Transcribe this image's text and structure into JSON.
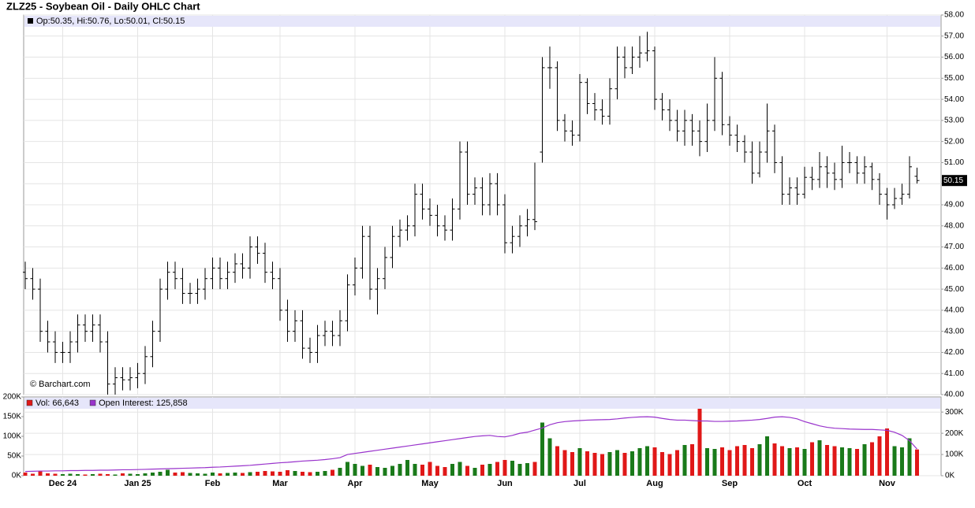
{
  "chart_data": {
    "type": "ohlc",
    "title": "ZLZ25 - Soybean Oil - Daily OHLC Chart",
    "legend_text": "Op:50.35, Hi:50.76, Lo:50.01, Cl:50.15",
    "watermark": "© Barchart.com",
    "categories": [
      null,
      null,
      null,
      null,
      null,
      "Dec 24",
      null,
      null,
      null,
      null,
      null,
      null,
      null,
      null,
      null,
      "Jan 25",
      null,
      null,
      null,
      null,
      null,
      null,
      null,
      null,
      null,
      "Feb",
      null,
      null,
      null,
      null,
      null,
      null,
      null,
      null,
      "Mar",
      null,
      null,
      null,
      null,
      null,
      null,
      null,
      null,
      null,
      "Apr",
      null,
      null,
      null,
      null,
      null,
      null,
      null,
      null,
      null,
      "May",
      null,
      null,
      null,
      null,
      null,
      null,
      null,
      null,
      null,
      "Jun",
      null,
      null,
      null,
      null,
      null,
      null,
      null,
      null,
      null,
      "Jul",
      null,
      null,
      null,
      null,
      null,
      null,
      null,
      null,
      null,
      "Aug",
      null,
      null,
      null,
      null,
      null,
      null,
      null,
      null,
      null,
      "Sep",
      null,
      null,
      null,
      null,
      null,
      null,
      null,
      null,
      null,
      "Oct",
      null,
      null,
      null,
      null,
      null,
      null,
      null,
      null,
      null,
      null,
      "Nov",
      null,
      null,
      null,
      null
    ],
    "open": [
      45.8,
      45.5,
      45,
      43,
      42.5,
      42,
      42,
      42.5,
      43.3,
      43,
      43.3,
      42.5,
      40.5,
      40.8,
      40.7,
      40.8,
      41,
      41.8,
      43,
      45,
      45.8,
      45.5,
      44.8,
      44.8,
      45,
      45.5,
      46,
      45.5,
      45.8,
      46.2,
      46,
      47,
      46.7,
      45.8,
      45.5,
      44,
      43,
      43.5,
      42.2,
      42,
      42.8,
      43,
      42.8,
      43.5,
      45.2,
      46,
      47.5,
      45,
      45.5,
      46.5,
      47.5,
      47.8,
      48,
      49.5,
      48.8,
      48.5,
      48,
      47.8,
      48.8,
      51.5,
      49.5,
      49.8,
      49,
      50,
      49,
      47.2,
      47.5,
      48,
      48.3,
      51.5,
      55.5,
      55.5,
      53,
      52.5,
      52.3,
      54.8,
      53.8,
      53.5,
      53.2,
      54.5,
      56,
      55.5,
      56,
      56.2,
      56.3,
      54,
      53.5,
      53,
      52.5,
      53,
      52.5,
      52,
      53,
      55,
      52.8,
      52.3,
      52,
      51.5,
      50.5,
      51.5,
      52.5,
      51,
      49.5,
      49.8,
      49.5,
      50.3,
      50.2,
      50.8,
      50.5,
      50.2,
      51,
      51,
      50.5,
      50.8,
      50.2,
      49.5,
      49,
      49.3,
      49.5,
      50.35
    ],
    "high": [
      46.3,
      46,
      45.5,
      43.5,
      43,
      42.5,
      43,
      43.8,
      43.8,
      43.8,
      43.8,
      43,
      41.3,
      41.3,
      41.3,
      41.5,
      42.3,
      43.5,
      45.5,
      46.3,
      46.3,
      46,
      45.3,
      45.5,
      46,
      46.5,
      46.5,
      46.3,
      46.7,
      46.7,
      47.5,
      47.5,
      47.2,
      46.3,
      46,
      44.5,
      44,
      44,
      42.7,
      43.3,
      43.5,
      43.5,
      44,
      45.7,
      46.5,
      48,
      48,
      46,
      47,
      48,
      48.3,
      48.5,
      50,
      50,
      49.3,
      49,
      48.5,
      49.3,
      52,
      52,
      50.3,
      50.3,
      50.5,
      50.5,
      49.5,
      48,
      48.5,
      48.8,
      51,
      56,
      56.5,
      55.8,
      53.3,
      53,
      55.2,
      55,
      54.3,
      54,
      55,
      56.5,
      56.5,
      56.5,
      57,
      57.2,
      56.5,
      54.3,
      54,
      53.5,
      53.5,
      53.3,
      53,
      53.8,
      56,
      55.3,
      53.2,
      52.8,
      52.3,
      52,
      52,
      53.8,
      52.8,
      51.3,
      50.3,
      50.3,
      50.8,
      50.8,
      51.5,
      51.3,
      51,
      51.8,
      51.5,
      51.3,
      51.3,
      51,
      50.5,
      49.8,
      49.8,
      50,
      51.3,
      50.76
    ],
    "low": [
      45,
      44.5,
      42.5,
      42,
      41.5,
      41.5,
      41.5,
      42,
      42.5,
      42.5,
      42,
      40,
      40,
      40.2,
      40.2,
      40.3,
      40.5,
      41.3,
      42.5,
      44.5,
      45,
      44.3,
      44.3,
      44.3,
      44.5,
      45,
      45,
      45,
      45.3,
      45.5,
      45.5,
      46.2,
      45.3,
      45,
      43.5,
      42.5,
      42.5,
      41.7,
      41.5,
      41.5,
      42.3,
      42.3,
      42.3,
      43,
      44.7,
      45.5,
      44.5,
      43.8,
      45,
      46,
      47,
      47.3,
      47.5,
      48.3,
      48,
      47.5,
      47.3,
      47.3,
      48.3,
      49,
      49,
      48.5,
      48.5,
      48.5,
      46.7,
      46.7,
      47,
      47.5,
      47.8,
      51,
      54.5,
      52.5,
      52,
      51.8,
      52,
      53.3,
      53,
      52.8,
      52.8,
      54,
      55,
      55.2,
      55.5,
      55.8,
      53.5,
      53,
      52.5,
      52,
      51.8,
      51.8,
      51.3,
      51.5,
      52.5,
      52.3,
      51.8,
      51.5,
      51,
      50,
      50.3,
      51,
      50.5,
      49,
      49,
      49,
      49.3,
      49.7,
      49.8,
      49.8,
      49.7,
      49.8,
      50.5,
      50,
      50,
      49.7,
      49,
      48.3,
      48.8,
      49,
      49.3,
      50.01
    ],
    "close": [
      45.5,
      45,
      43,
      42.5,
      42,
      42,
      42.5,
      43.3,
      43,
      43.3,
      42.5,
      40.5,
      40.8,
      40.7,
      40.8,
      41,
      41.8,
      43,
      45,
      45.8,
      45.5,
      44.8,
      44.8,
      45,
      45.5,
      46,
      45.5,
      45.8,
      46.2,
      46,
      47,
      46.7,
      45.8,
      45.5,
      44,
      43,
      43.5,
      42.2,
      42,
      42.8,
      43,
      42.8,
      43.5,
      45.2,
      46,
      47.5,
      45,
      45.5,
      46.5,
      47.5,
      47.8,
      48,
      49.5,
      48.8,
      48.5,
      48,
      47.8,
      48.8,
      51.5,
      49.5,
      49.8,
      49,
      50,
      49,
      47.2,
      47.5,
      48,
      48.3,
      48.2,
      55.5,
      55.5,
      53,
      52.5,
      52.3,
      54.8,
      53.8,
      53.5,
      53.2,
      54.5,
      56,
      55.5,
      56,
      56.2,
      56.3,
      54,
      53.5,
      53,
      52.5,
      53,
      52.5,
      52,
      53,
      55,
      52.8,
      52.3,
      52,
      51.5,
      50.5,
      51.5,
      52.5,
      51,
      49.5,
      49.8,
      49.5,
      50.3,
      50.2,
      50.8,
      50.5,
      50.2,
      51,
      51,
      50.5,
      50.8,
      50.2,
      49.5,
      49,
      49.3,
      49.5,
      50.8,
      50.15
    ],
    "color": "#000000",
    "up_color": "#1a7a1a",
    "down_color": "#e01818",
    "grid": true,
    "ylim": [
      40,
      58
    ],
    "yticks": [
      {
        "value": 40,
        "label": "40.00"
      },
      {
        "value": 41,
        "label": "41.00"
      },
      {
        "value": 42,
        "label": "42.00"
      },
      {
        "value": 43,
        "label": "43.00"
      },
      {
        "value": 44,
        "label": "44.00"
      },
      {
        "value": 45,
        "label": "45.00"
      },
      {
        "value": 46,
        "label": "46.00"
      },
      {
        "value": 47,
        "label": "47.00"
      },
      {
        "value": 48,
        "label": "48.00"
      },
      {
        "value": 49,
        "label": "49.00"
      },
      {
        "value": 50,
        "label": "50.00"
      },
      {
        "value": 51,
        "label": "51.00"
      },
      {
        "value": 52,
        "label": "52.00"
      },
      {
        "value": 53,
        "label": "53.00"
      },
      {
        "value": 54,
        "label": "54.00"
      },
      {
        "value": 55,
        "label": "55.00"
      },
      {
        "value": 56,
        "label": "56.00"
      },
      {
        "value": 57,
        "label": "57.00"
      },
      {
        "value": 58,
        "label": "58.00"
      }
    ],
    "volume": {
      "type": "bar",
      "series": [
        {
          "name": "Vol: 66,643",
          "color": "#e01818",
          "values": [
            8000,
            5000,
            12000,
            6000,
            5000,
            4000,
            5000,
            4000,
            3000,
            4000,
            5000,
            4000,
            3000,
            6000,
            5000,
            4000,
            6000,
            8000,
            10000,
            15000,
            8000,
            9000,
            7000,
            6000,
            5000,
            8000,
            6000,
            7000,
            8000,
            7000,
            9000,
            10000,
            12000,
            11000,
            10000,
            14000,
            12000,
            10000,
            9000,
            10000,
            12000,
            15000,
            20000,
            35000,
            30000,
            25000,
            28000,
            22000,
            20000,
            25000,
            30000,
            40000,
            30000,
            28000,
            35000,
            25000,
            22000,
            30000,
            35000,
            25000,
            20000,
            28000,
            30000,
            35000,
            40000,
            38000,
            30000,
            32000,
            35000,
            135000,
            95000,
            75000,
            65000,
            60000,
            70000,
            62000,
            58000,
            55000,
            60000,
            65000,
            58000,
            62000,
            70000,
            75000,
            72000,
            60000,
            55000,
            65000,
            78000,
            80000,
            185000,
            70000,
            68000,
            72000,
            65000,
            75000,
            78000,
            70000,
            80000,
            100000,
            82000,
            75000,
            70000,
            72000,
            68000,
            85000,
            90000,
            78000,
            75000,
            72000,
            70000,
            68000,
            80000,
            85000,
            100000,
            120000,
            75000,
            72000,
            95000,
            66643
          ]
        },
        {
          "name": "Open Interest: 125,858",
          "color": "#9933cc",
          "axis": "y2",
          "values": [
            20000,
            21000,
            22000,
            22000,
            23000,
            23000,
            24000,
            24000,
            25000,
            25000,
            26000,
            26000,
            27000,
            28000,
            28000,
            29000,
            30000,
            31000,
            32000,
            33000,
            34000,
            35000,
            36000,
            37000,
            38000,
            40000,
            41000,
            43000,
            45000,
            47000,
            49000,
            52000,
            55000,
            58000,
            61000,
            63000,
            66000,
            69000,
            71000,
            73000,
            76000,
            80000,
            85000,
            100000,
            105000,
            110000,
            115000,
            120000,
            125000,
            130000,
            135000,
            140000,
            145000,
            150000,
            155000,
            160000,
            165000,
            170000,
            175000,
            180000,
            185000,
            188000,
            190000,
            185000,
            183000,
            190000,
            200000,
            205000,
            215000,
            225000,
            240000,
            250000,
            255000,
            258000,
            260000,
            262000,
            263000,
            264000,
            265000,
            268000,
            272000,
            275000,
            277000,
            278000,
            276000,
            270000,
            265000,
            262000,
            262000,
            260000,
            258000,
            258000,
            256000,
            256000,
            257000,
            258000,
            260000,
            262000,
            265000,
            270000,
            276000,
            278000,
            275000,
            268000,
            255000,
            245000,
            235000,
            228000,
            224000,
            222000,
            220000,
            219000,
            218000,
            218000,
            216000,
            214000,
            205000,
            190000,
            165000,
            125858
          ]
        }
      ],
      "ylim": [
        0,
        200000
      ],
      "yticks": [
        {
          "value": 0,
          "label": "0K"
        },
        {
          "value": 50000,
          "label": "50K"
        },
        {
          "value": 100000,
          "label": "100K"
        },
        {
          "value": 150000,
          "label": "150K"
        },
        {
          "value": 200000,
          "label": "200K"
        }
      ],
      "y2lim": [
        0,
        371250
      ],
      "y2ticks": [
        {
          "value": 0,
          "label": "0K"
        },
        {
          "value": 100000,
          "label": "100K"
        },
        {
          "value": 200000,
          "label": "200K"
        },
        {
          "value": 300000,
          "label": "300K"
        }
      ]
    }
  }
}
